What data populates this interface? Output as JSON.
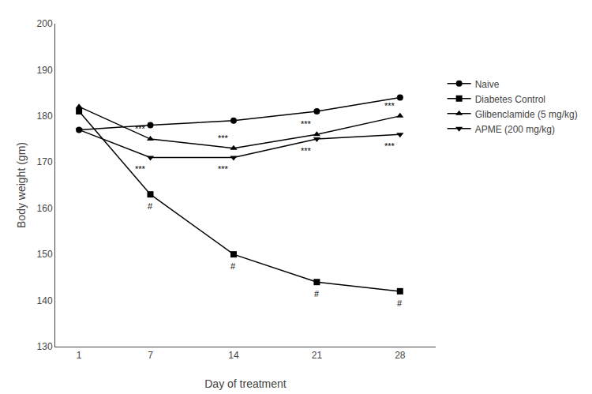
{
  "chart_data": {
    "type": "line",
    "x": [
      1,
      7,
      14,
      21,
      28
    ],
    "xlabel": "Day of treatment",
    "ylabel": "Body weight (gm)",
    "series": [
      {
        "name": "Naive",
        "color": "#000000",
        "marker": "circle",
        "values": [
          177,
          178,
          179,
          181,
          184
        ]
      },
      {
        "name": "Diabetes Control",
        "color": "#000000",
        "marker": "square",
        "values": [
          181,
          163,
          150,
          144,
          142
        ]
      },
      {
        "name": "Glibenclamide (5 mg/kg)",
        "color": "#000000",
        "marker": "triangle-up",
        "values": [
          182,
          175,
          173,
          176,
          180
        ]
      },
      {
        "name": "APME (200 mg/kg)",
        "color": "#000000",
        "marker": "triangle-down",
        "values": [
          177,
          171,
          171,
          175,
          176
        ]
      }
    ],
    "xlim": [
      -1,
      31
    ],
    "xticks": [
      1,
      7,
      14,
      21,
      28
    ],
    "ylim": [
      130,
      200
    ],
    "yticks": [
      130,
      140,
      150,
      160,
      170,
      180,
      190,
      200
    ],
    "grid": false,
    "legend": "right",
    "annotations": [
      {
        "text": "#",
        "x": 7,
        "series": "Diabetes Control"
      },
      {
        "text": "#",
        "x": 14,
        "series": "Diabetes Control"
      },
      {
        "text": "#",
        "x": 21,
        "series": "Diabetes Control"
      },
      {
        "text": "#",
        "x": 28,
        "series": "Diabetes Control"
      },
      {
        "text": "***",
        "x": 7,
        "series": "Glibenclamide (5 mg/kg)"
      },
      {
        "text": "***",
        "x": 14,
        "series": "Glibenclamide (5 mg/kg)"
      },
      {
        "text": "***",
        "x": 21,
        "series": "Glibenclamide (5 mg/kg)"
      },
      {
        "text": "***",
        "x": 28,
        "series": "Glibenclamide (5 mg/kg)"
      },
      {
        "text": "***",
        "x": 7,
        "series": "APME (200 mg/kg)"
      },
      {
        "text": "***",
        "x": 14,
        "series": "APME (200 mg/kg)"
      },
      {
        "text": "***",
        "x": 21,
        "series": "APME (200 mg/kg)"
      },
      {
        "text": "***",
        "x": 28,
        "series": "APME (200 mg/kg)"
      }
    ]
  }
}
